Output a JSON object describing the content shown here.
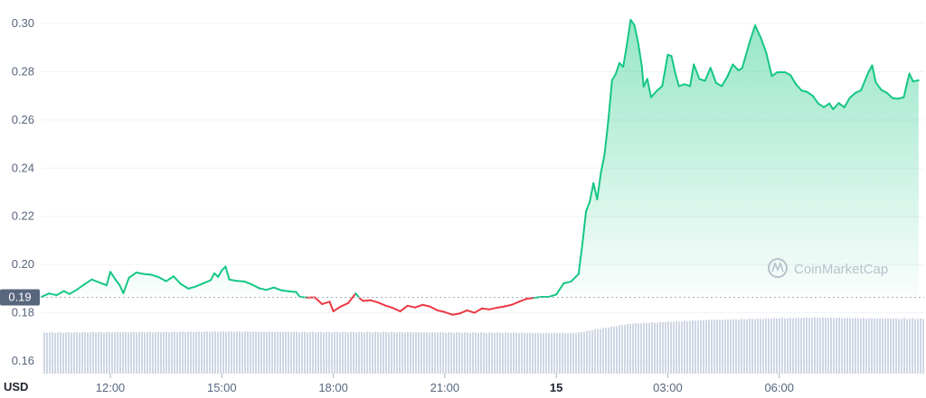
{
  "watermark": "CoinMarketCap",
  "chart_data": {
    "type": "line",
    "ylabel": "USD",
    "ylim": [
      0.155,
      0.305
    ],
    "yticks": [
      0.3,
      0.28,
      0.26,
      0.24,
      0.22,
      0.2,
      0.18,
      0.16
    ],
    "ytick_labels": [
      "0.30",
      "0.28",
      "0.26",
      "0.24",
      "0.22",
      "0.20",
      "0.18",
      "0.16"
    ],
    "reference_value": 0.1864,
    "reference_label": "0.19",
    "x_range_hours": [
      10.15,
      33.9
    ],
    "xticks": [
      {
        "hour": 12,
        "label": "12:00"
      },
      {
        "hour": 15,
        "label": "15:00"
      },
      {
        "hour": 18,
        "label": "18:00"
      },
      {
        "hour": 21,
        "label": "21:00"
      },
      {
        "hour": 24,
        "label": "15",
        "bold": true
      },
      {
        "hour": 27,
        "label": "03:00"
      },
      {
        "hour": 30,
        "label": "06:00"
      }
    ],
    "colors": {
      "up": "#16c784",
      "down": "#ea3943",
      "volume": "#cfd6e4",
      "grid": "#eff2f5",
      "reference": "#a6b0c3"
    },
    "series": [
      {
        "values": [
          [
            10.15,
            0.1866
          ],
          [
            10.35,
            0.188
          ],
          [
            10.55,
            0.1873
          ],
          [
            10.75,
            0.189
          ],
          [
            10.9,
            0.1878
          ],
          [
            11.1,
            0.1896
          ],
          [
            11.3,
            0.1918
          ],
          [
            11.5,
            0.1938
          ],
          [
            11.7,
            0.1926
          ],
          [
            11.9,
            0.1914
          ],
          [
            12.0,
            0.197
          ],
          [
            12.15,
            0.1935
          ],
          [
            12.25,
            0.1915
          ],
          [
            12.35,
            0.1881
          ],
          [
            12.5,
            0.1945
          ],
          [
            12.7,
            0.1967
          ],
          [
            12.9,
            0.1961
          ],
          [
            13.1,
            0.1958
          ],
          [
            13.3,
            0.1948
          ],
          [
            13.5,
            0.1931
          ],
          [
            13.7,
            0.1951
          ],
          [
            13.9,
            0.1919
          ],
          [
            14.1,
            0.19
          ],
          [
            14.3,
            0.1909
          ],
          [
            14.5,
            0.1922
          ],
          [
            14.7,
            0.1935
          ],
          [
            14.8,
            0.1964
          ],
          [
            14.9,
            0.1949
          ],
          [
            15.0,
            0.1976
          ],
          [
            15.1,
            0.1992
          ],
          [
            15.2,
            0.1938
          ],
          [
            15.4,
            0.1932
          ],
          [
            15.6,
            0.193
          ],
          [
            15.8,
            0.1918
          ],
          [
            16.0,
            0.1902
          ],
          [
            16.2,
            0.1895
          ],
          [
            16.4,
            0.1905
          ],
          [
            16.6,
            0.1893
          ],
          [
            16.8,
            0.1889
          ],
          [
            17.0,
            0.1886
          ],
          [
            17.1,
            0.1866
          ],
          [
            17.3,
            0.1863
          ],
          [
            17.5,
            0.1864
          ],
          [
            17.7,
            0.1836
          ],
          [
            17.9,
            0.1846
          ],
          [
            18.0,
            0.1806
          ],
          [
            18.2,
            0.1826
          ],
          [
            18.4,
            0.184
          ],
          [
            18.6,
            0.188
          ],
          [
            18.7,
            0.1862
          ],
          [
            18.8,
            0.1849
          ],
          [
            19.0,
            0.1852
          ],
          [
            19.2,
            0.1843
          ],
          [
            19.4,
            0.183
          ],
          [
            19.6,
            0.182
          ],
          [
            19.8,
            0.1806
          ],
          [
            20.0,
            0.1829
          ],
          [
            20.2,
            0.1822
          ],
          [
            20.4,
            0.1833
          ],
          [
            20.6,
            0.1826
          ],
          [
            20.8,
            0.181
          ],
          [
            21.0,
            0.1803
          ],
          [
            21.2,
            0.1792
          ],
          [
            21.4,
            0.1797
          ],
          [
            21.6,
            0.181
          ],
          [
            21.8,
            0.18
          ],
          [
            22.0,
            0.1818
          ],
          [
            22.2,
            0.1814
          ],
          [
            22.4,
            0.1821
          ],
          [
            22.6,
            0.1826
          ],
          [
            22.8,
            0.1833
          ],
          [
            23.0,
            0.1846
          ],
          [
            23.2,
            0.1858
          ],
          [
            23.4,
            0.1862
          ],
          [
            23.6,
            0.1866
          ],
          [
            23.8,
            0.1866
          ],
          [
            24.0,
            0.1876
          ],
          [
            24.2,
            0.1922
          ],
          [
            24.4,
            0.193
          ],
          [
            24.6,
            0.1961
          ],
          [
            24.7,
            0.2082
          ],
          [
            24.8,
            0.222
          ],
          [
            24.9,
            0.226
          ],
          [
            25.0,
            0.2338
          ],
          [
            25.1,
            0.227
          ],
          [
            25.2,
            0.238
          ],
          [
            25.3,
            0.2458
          ],
          [
            25.4,
            0.2598
          ],
          [
            25.5,
            0.2765
          ],
          [
            25.6,
            0.279
          ],
          [
            25.7,
            0.2836
          ],
          [
            25.8,
            0.282
          ],
          [
            25.9,
            0.2912
          ],
          [
            26.0,
            0.3015
          ],
          [
            26.1,
            0.2994
          ],
          [
            26.2,
            0.2922
          ],
          [
            26.3,
            0.2825
          ],
          [
            26.35,
            0.2738
          ],
          [
            26.45,
            0.277
          ],
          [
            26.55,
            0.2694
          ],
          [
            26.7,
            0.272
          ],
          [
            26.85,
            0.274
          ],
          [
            27.0,
            0.287
          ],
          [
            27.1,
            0.2865
          ],
          [
            27.2,
            0.2795
          ],
          [
            27.3,
            0.274
          ],
          [
            27.45,
            0.2748
          ],
          [
            27.6,
            0.274
          ],
          [
            27.7,
            0.283
          ],
          [
            27.85,
            0.277
          ],
          [
            28.0,
            0.2762
          ],
          [
            28.15,
            0.2816
          ],
          [
            28.3,
            0.2754
          ],
          [
            28.45,
            0.274
          ],
          [
            28.6,
            0.2778
          ],
          [
            28.75,
            0.283
          ],
          [
            28.9,
            0.2806
          ],
          [
            29.0,
            0.2814
          ],
          [
            29.2,
            0.2921
          ],
          [
            29.35,
            0.2992
          ],
          [
            29.5,
            0.2942
          ],
          [
            29.65,
            0.2878
          ],
          [
            29.8,
            0.2782
          ],
          [
            29.95,
            0.2798
          ],
          [
            30.15,
            0.2798
          ],
          [
            30.3,
            0.2786
          ],
          [
            30.45,
            0.2748
          ],
          [
            30.6,
            0.2722
          ],
          [
            30.75,
            0.2716
          ],
          [
            30.9,
            0.27
          ],
          [
            31.05,
            0.2668
          ],
          [
            31.2,
            0.2653
          ],
          [
            31.35,
            0.2668
          ],
          [
            31.45,
            0.2644
          ],
          [
            31.6,
            0.267
          ],
          [
            31.75,
            0.2652
          ],
          [
            31.9,
            0.2692
          ],
          [
            32.05,
            0.2712
          ],
          [
            32.2,
            0.2723
          ],
          [
            32.4,
            0.2798
          ],
          [
            32.5,
            0.2826
          ],
          [
            32.6,
            0.2755
          ],
          [
            32.75,
            0.2724
          ],
          [
            32.9,
            0.2712
          ],
          [
            33.05,
            0.269
          ],
          [
            33.2,
            0.2688
          ],
          [
            33.35,
            0.2694
          ],
          [
            33.5,
            0.2792
          ],
          [
            33.6,
            0.276
          ],
          [
            33.75,
            0.2764
          ]
        ]
      }
    ],
    "volume_relative": [
      [
        10.15,
        0.69
      ],
      [
        15.0,
        0.705
      ],
      [
        20.0,
        0.695
      ],
      [
        24.5,
        0.68
      ],
      [
        25.0,
        0.74
      ],
      [
        26.0,
        0.84
      ],
      [
        28.0,
        0.9
      ],
      [
        30.0,
        0.93
      ],
      [
        31.0,
        0.94
      ],
      [
        32.0,
        0.93
      ],
      [
        33.9,
        0.92
      ]
    ]
  }
}
